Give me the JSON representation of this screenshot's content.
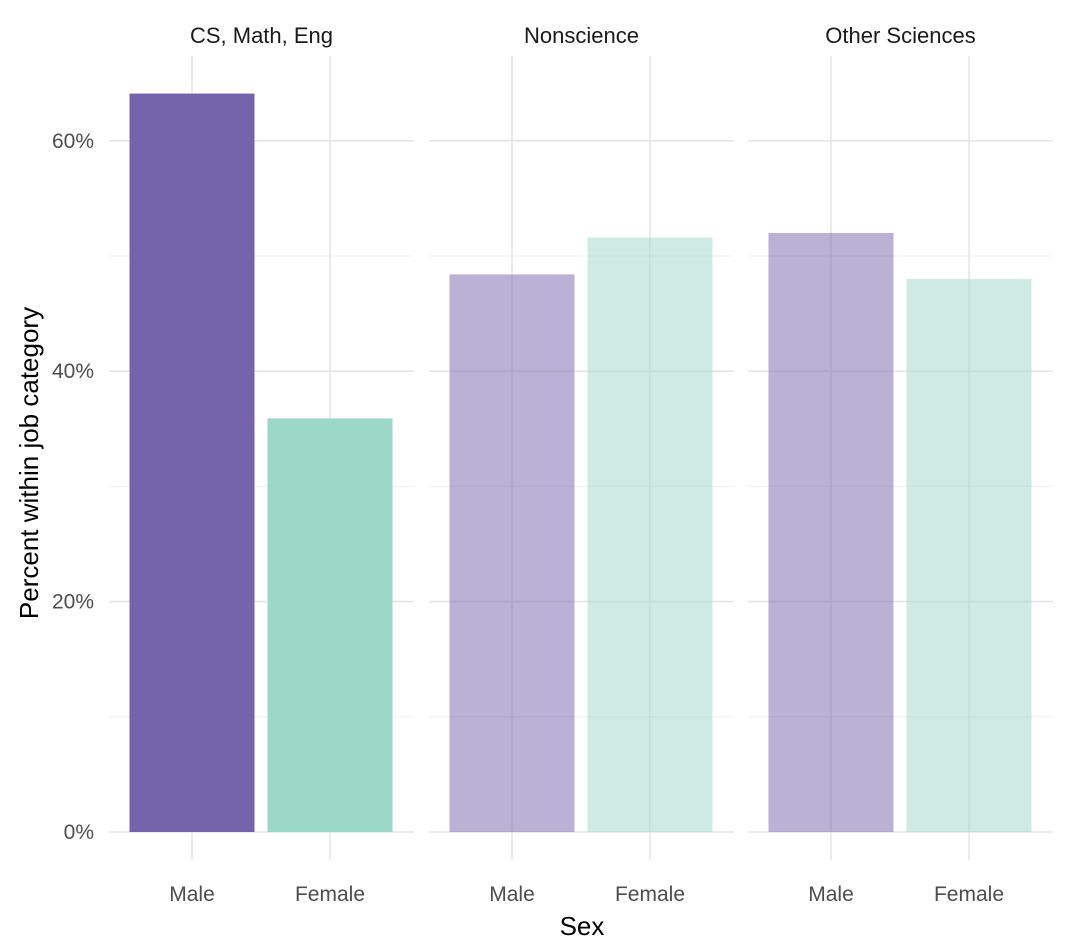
{
  "chart_data": {
    "type": "bar",
    "facet_by": "job category",
    "panels": [
      {
        "title": "CS, Math, Eng",
        "highlight": true,
        "categories": [
          "Male",
          "Female"
        ],
        "values": [
          64.1,
          35.9
        ]
      },
      {
        "title": "Nonscience",
        "highlight": false,
        "categories": [
          "Male",
          "Female"
        ],
        "values": [
          48.4,
          51.6
        ]
      },
      {
        "title": "Other Sciences",
        "highlight": false,
        "categories": [
          "Male",
          "Female"
        ],
        "values": [
          52.0,
          48.0
        ]
      }
    ],
    "xlabel": "Sex",
    "ylabel": "Percent within job category",
    "ylim": [
      0,
      64
    ],
    "yticks": [
      0,
      20,
      40,
      60
    ],
    "ytick_labels": [
      "0%",
      "20%",
      "40%",
      "60%"
    ],
    "grid": true,
    "colors": {
      "Male": "#7563ab",
      "Female": "#9bd8c8"
    },
    "faded_opacity": 0.5
  }
}
